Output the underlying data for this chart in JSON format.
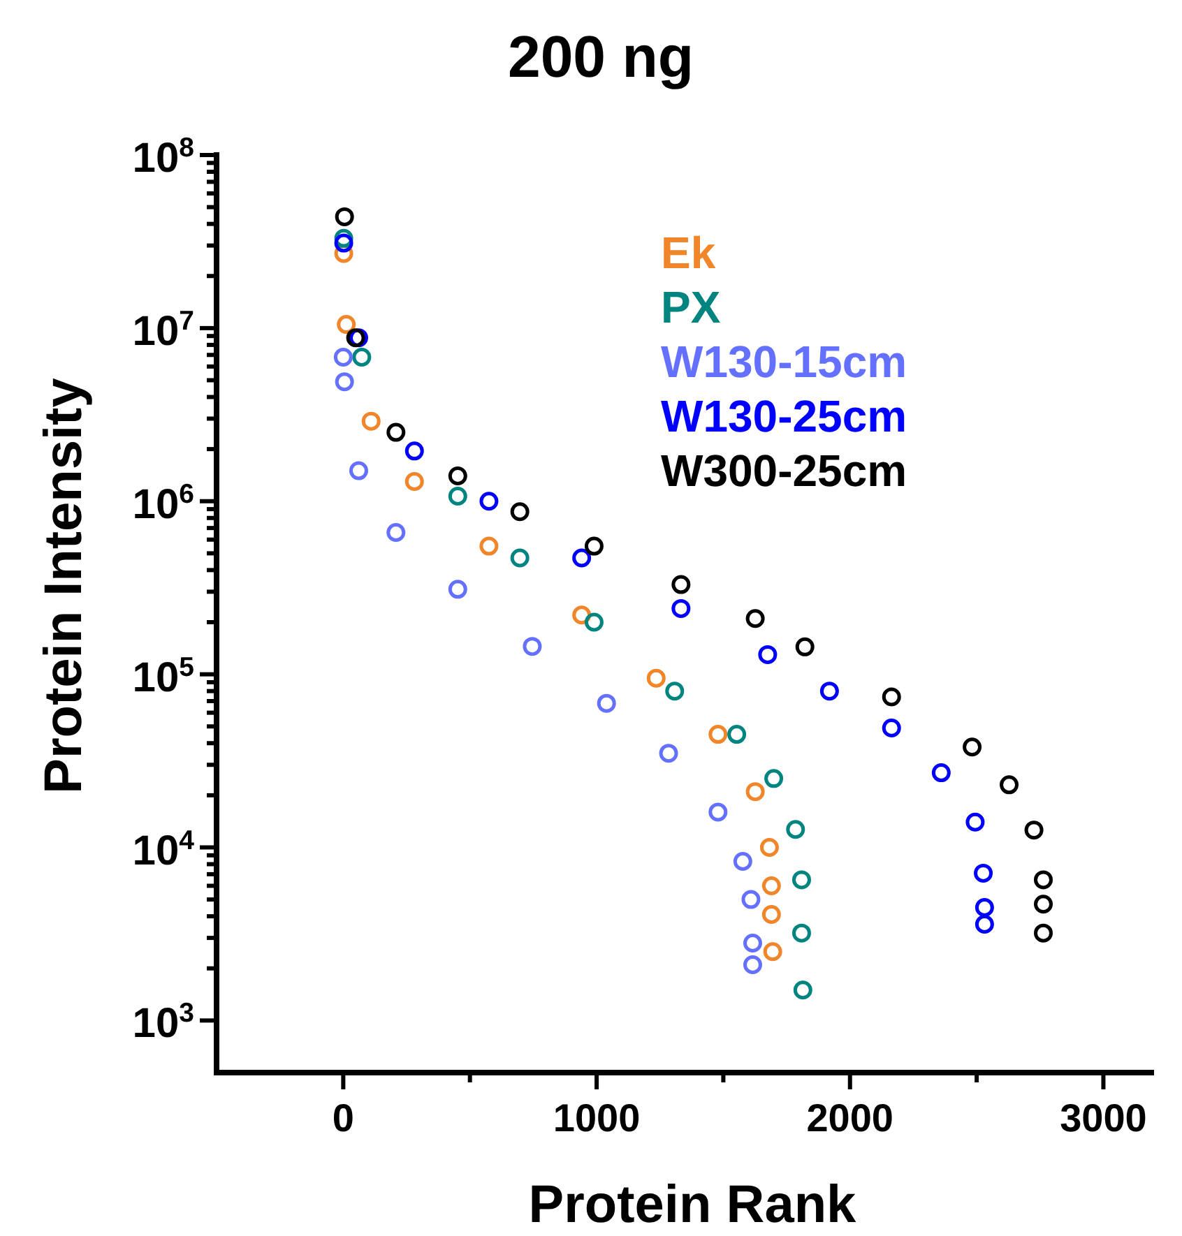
{
  "chart_data": {
    "type": "scatter",
    "title": "200 ng",
    "xlabel": "Protein Rank",
    "ylabel": "Protein Intensity",
    "log": "y",
    "marker": "circle",
    "legend": "top right",
    "grid": false,
    "xlim": [
      -500,
      3200
    ],
    "xticks": [
      0,
      {
        "value": 500,
        "label": null
      },
      1000,
      {
        "value": 1500,
        "label": null
      },
      2000,
      {
        "value": 2500,
        "label": null
      },
      3000
    ],
    "ylim": [
      500,
      100000000
    ],
    "yticks": [
      {
        "value": 1000,
        "label": "10$^{3}$"
      },
      {
        "value": 2000,
        "label": null
      },
      {
        "value": 3000,
        "label": null
      },
      {
        "value": 4000,
        "label": null
      },
      {
        "value": 5000,
        "label": null
      },
      {
        "value": 6000,
        "label": null
      },
      {
        "value": 7000,
        "label": null
      },
      {
        "value": 8000,
        "label": null
      },
      {
        "value": 9000,
        "label": null
      },
      {
        "value": 10000,
        "label": "10$^{4}$"
      },
      {
        "value": 20000,
        "label": null
      },
      {
        "value": 30000,
        "label": null
      },
      {
        "value": 40000,
        "label": null
      },
      {
        "value": 50000,
        "label": null
      },
      {
        "value": 60000,
        "label": null
      },
      {
        "value": 70000,
        "label": null
      },
      {
        "value": 80000,
        "label": null
      },
      {
        "value": 90000,
        "label": null
      },
      {
        "value": 100000,
        "label": "10$^{5}$"
      },
      {
        "value": 200000,
        "label": null
      },
      {
        "value": 300000,
        "label": null
      },
      {
        "value": 400000,
        "label": null
      },
      {
        "value": 500000,
        "label": null
      },
      {
        "value": 600000,
        "label": null
      },
      {
        "value": 700000,
        "label": null
      },
      {
        "value": 800000,
        "label": null
      },
      {
        "value": 900000,
        "label": null
      },
      {
        "value": 1000000,
        "label": "10$^{6}$"
      },
      {
        "value": 2000000,
        "label": null
      },
      {
        "value": 3000000,
        "label": null
      },
      {
        "value": 4000000,
        "label": null
      },
      {
        "value": 5000000,
        "label": null
      },
      {
        "value": 6000000,
        "label": null
      },
      {
        "value": 7000000,
        "label": null
      },
      {
        "value": 8000000,
        "label": null
      },
      {
        "value": 9000000,
        "label": null
      },
      {
        "value": 10000000,
        "label": "10$^{7}$"
      },
      {
        "value": 20000000,
        "label": null
      },
      {
        "value": 30000000,
        "label": null
      },
      {
        "value": 40000000,
        "label": null
      },
      {
        "value": 50000000,
        "label": null
      },
      {
        "value": 60000000,
        "label": null
      },
      {
        "value": 70000000,
        "label": null
      },
      {
        "value": 80000000,
        "label": null
      },
      {
        "value": 90000000,
        "label": null
      },
      {
        "value": 100000000,
        "label": "10$^{8}$"
      }
    ],
    "series": [
      {
        "name": "Ek",
        "color": "#f0852a",
        "x": [
          2,
          12,
          110,
          281,
          575,
          941,
          1235,
          1479,
          1626,
          1682,
          1690,
          1690,
          1695
        ],
        "values": [
          27000000,
          10500000,
          2900000,
          1300000,
          550000,
          220000,
          95000,
          45000,
          21000,
          10000,
          6000,
          4100,
          2500
        ]
      },
      {
        "name": "PX",
        "color": "#00847f",
        "x": [
          2,
          73,
          452,
          697,
          990,
          1308,
          1553,
          1699,
          1785,
          1809,
          1809,
          1814
        ],
        "values": [
          33000000,
          6800000,
          1070000,
          470000,
          200000,
          80000,
          45000,
          25000,
          12700,
          6500,
          3200,
          1500
        ]
      },
      {
        "name": "W130-15cm",
        "color": "#6470ff",
        "x": [
          0,
          5,
          61,
          208,
          452,
          746,
          1039,
          1284,
          1479,
          1577,
          1609,
          1616,
          1616
        ],
        "values": [
          6800000,
          4900000,
          1500000,
          660000,
          310000,
          145000,
          68000,
          35000,
          16000,
          8300,
          5000,
          2800,
          2100
        ]
      },
      {
        "name": "W130-25cm",
        "color": "#0000ff",
        "x": [
          2,
          61,
          281,
          575,
          941,
          1333,
          1675,
          1919,
          2164,
          2360,
          2494,
          2526,
          2531,
          2531
        ],
        "values": [
          31000000,
          8800000,
          1950000,
          1000000,
          470000,
          240000,
          130000,
          80000,
          49000,
          27000,
          14000,
          7100,
          4500,
          3600
        ]
      },
      {
        "name": "W300-25cm",
        "color": "#000000",
        "x": [
          5,
          49,
          208,
          452,
          697,
          990,
          1333,
          1626,
          1822,
          2164,
          2482,
          2628,
          2726,
          2763,
          2763,
          2763
        ],
        "values": [
          44000000,
          8800000,
          2500000,
          1400000,
          870000,
          550000,
          330000,
          210000,
          144000,
          74000,
          38000,
          23000,
          12600,
          6500,
          4700,
          3200
        ]
      }
    ]
  }
}
